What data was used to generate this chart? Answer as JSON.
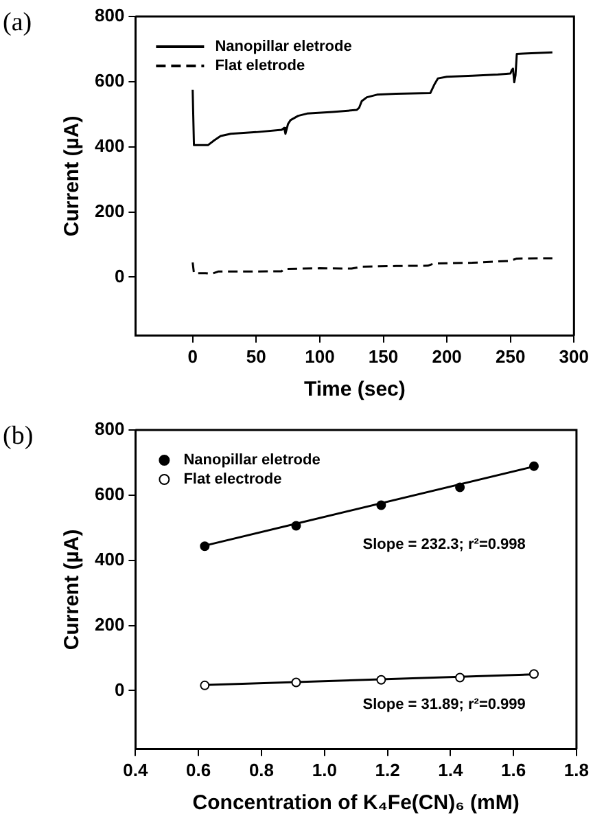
{
  "chart_data": [
    {
      "type": "line",
      "title": "(a)",
      "xlabel": "Time (sec)",
      "ylabel": "Current (µA)",
      "xlim": [
        -45,
        300
      ],
      "xticks": [
        0,
        50,
        100,
        150,
        200,
        250,
        300
      ],
      "ylim": [
        -180,
        800
      ],
      "yticks": [
        0,
        200,
        400,
        600,
        800
      ],
      "grid": false,
      "legend": "top left",
      "marker": "none",
      "series": [
        {
          "name": "Nanopillar eletrode",
          "color": "#000000",
          "line_style": "solid",
          "x": [
            0,
            1,
            12,
            17,
            22,
            30,
            50,
            70,
            72,
            73,
            75,
            77,
            83,
            90,
            110,
            129,
            131,
            133,
            137,
            145,
            160,
            187,
            190,
            193,
            200,
            220,
            240,
            250,
            251,
            252,
            253,
            254,
            255,
            260,
            283
          ],
          "values": [
            575,
            405,
            405,
            420,
            433,
            440,
            445,
            452,
            458,
            440,
            470,
            482,
            495,
            502,
            507,
            513,
            520,
            540,
            552,
            560,
            563,
            565,
            590,
            610,
            615,
            618,
            622,
            625,
            635,
            640,
            598,
            620,
            685,
            686,
            690
          ]
        },
        {
          "name": "Flat eletrode",
          "color": "#000000",
          "line_style": "dashed",
          "x": [
            0,
            1,
            10,
            15,
            20,
            40,
            70,
            72,
            100,
            125,
            133,
            160,
            185,
            190,
            220,
            250,
            255,
            283
          ],
          "values": [
            45,
            12,
            12,
            10,
            17,
            17,
            18,
            25,
            27,
            26,
            32,
            34,
            35,
            42,
            44,
            50,
            57,
            58
          ]
        }
      ]
    },
    {
      "type": "scatter",
      "title": "(b)",
      "xlabel": "Concentration of K₄Fe(CN)₆ (mM)",
      "ylabel": "Current (µA)",
      "xlim": [
        0.4,
        1.8
      ],
      "xticks": [
        0.4,
        0.6,
        0.8,
        {
          "value": 1,
          "label": "1.0"
        },
        1.2,
        1.4,
        1.6,
        1.8
      ],
      "ylim": [
        -180,
        800
      ],
      "yticks": [
        0,
        200,
        400,
        600,
        800
      ],
      "grid": false,
      "legend": "top left",
      "marker": "circle",
      "series": [
        {
          "name": "Nanopillar eletrode",
          "color": "#000000",
          "x": [
            0.62,
            0.91,
            1.18,
            1.43,
            1.665
          ],
          "values": [
            443,
            506,
            569,
            624,
            689
          ]
        },
        {
          "name": "Flat electrode",
          "color": "#ffffff",
          "x": [
            0.62,
            0.91,
            1.18,
            1.43,
            1.665
          ],
          "values": [
            16,
            25,
            33,
            40,
            51
          ]
        },
        {
          "type": "line",
          "marker": "none",
          "color": "#000000",
          "x": [
            0.62,
            1.665
          ],
          "values": [
            445,
            688
          ]
        },
        {
          "type": "line",
          "marker": "none",
          "color": "#000000",
          "x": [
            0.62,
            1.665
          ],
          "values": [
            17,
            50
          ]
        }
      ],
      "annotations": [
        "Slope = 232.3; r²=0.998",
        "Slope = 31.89; r²=0.999"
      ]
    }
  ]
}
